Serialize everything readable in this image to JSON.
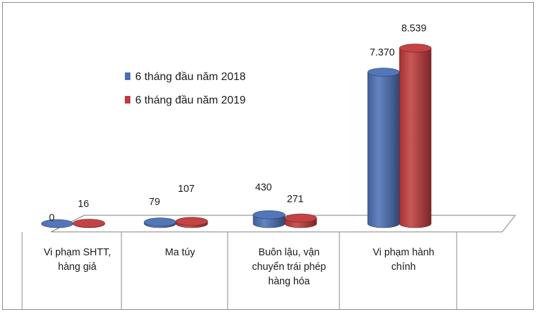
{
  "chart_data": {
    "type": "bar",
    "style": "3d-cylinder",
    "categories": [
      [
        "Vi phạm SHTT,",
        "hàng giả"
      ],
      [
        "Ma túy"
      ],
      [
        "Buôn lậu, vận",
        "chuyển trái phép",
        "hàng hóa"
      ],
      [
        "Vi phạm hành",
        "chính"
      ]
    ],
    "series": [
      {
        "name": "6 tháng đầu năm 2018",
        "color": "#4a6fb5",
        "values": [
          0,
          79,
          430,
          7370
        ],
        "labels": [
          "0",
          "79",
          "430",
          "7.370"
        ]
      },
      {
        "name": "6 tháng đầu năm 2019",
        "color": "#c0393b",
        "values": [
          16,
          107,
          271,
          8539
        ],
        "labels": [
          "16",
          "107",
          "271",
          "8.539"
        ]
      }
    ],
    "ylim": [
      0,
      9000
    ],
    "legend_position": "left-top",
    "grid": false
  }
}
